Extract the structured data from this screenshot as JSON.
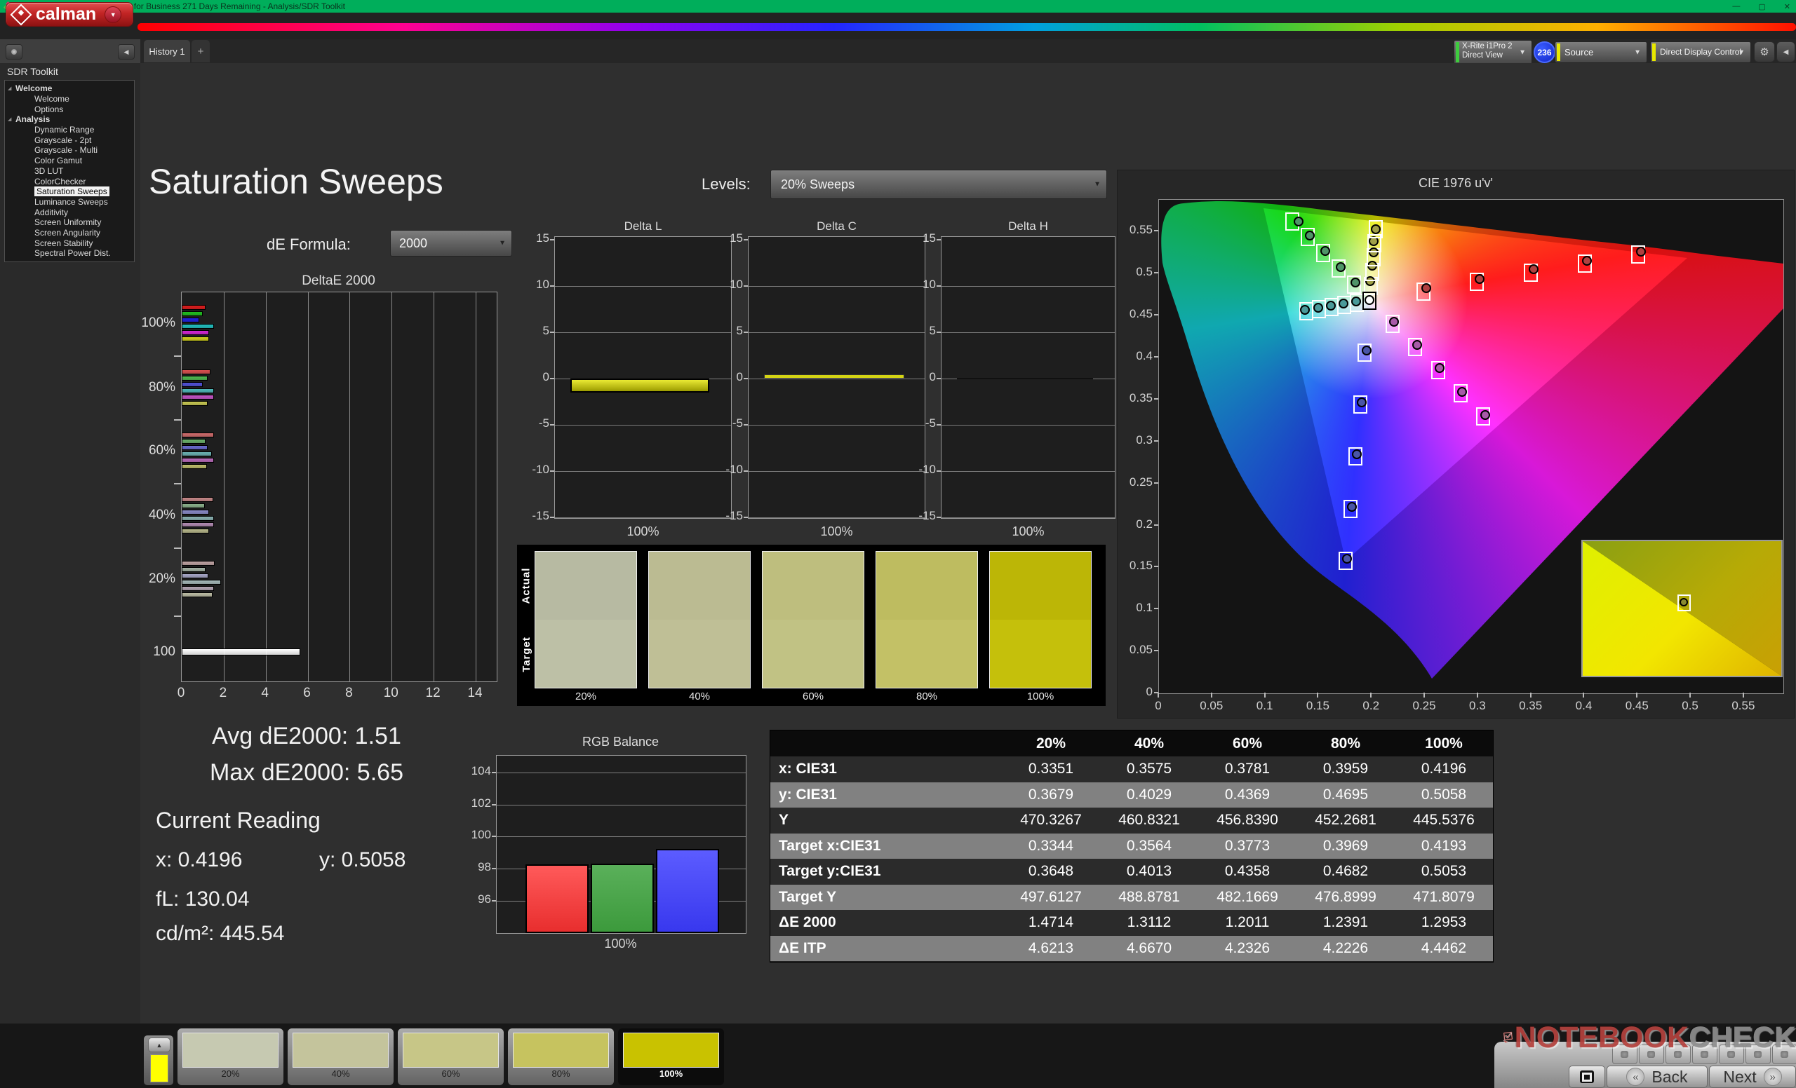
{
  "window": {
    "title": "Calman 2025 Calman Ultimate for Business 271 Days Remaining  - Analysis/SDR Toolkit",
    "controls": [
      "—",
      "▢",
      "✕"
    ]
  },
  "brand": {
    "logo_text": "calman"
  },
  "tabs": {
    "history": "History 1",
    "add": "+"
  },
  "toolbar": {
    "meter": {
      "line1": "X-Rite i1Pro 2",
      "line2": "Direct View",
      "badge": "236",
      "stripe_color": "#3ecb3e"
    },
    "source": {
      "label": "Source",
      "stripe_color": "#e8e800"
    },
    "display_control": {
      "label": "Direct Display Control",
      "stripe_color": "#e8e800"
    }
  },
  "sidebar": {
    "title": "SDR Toolkit",
    "tree": [
      {
        "label": "Welcome",
        "level": 0,
        "bold": true,
        "expander": true
      },
      {
        "label": "Welcome",
        "level": 1
      },
      {
        "label": "Options",
        "level": 1
      },
      {
        "label": "Analysis",
        "level": 0,
        "bold": true,
        "expander": true
      },
      {
        "label": "Dynamic Range",
        "level": 1
      },
      {
        "label": "Grayscale - 2pt",
        "level": 1
      },
      {
        "label": "Grayscale - Multi",
        "level": 1
      },
      {
        "label": "Color Gamut",
        "level": 1
      },
      {
        "label": "3D LUT",
        "level": 1
      },
      {
        "label": "ColorChecker",
        "level": 1
      },
      {
        "label": "Saturation Sweeps",
        "level": 1,
        "selected": true
      },
      {
        "label": "Luminance Sweeps",
        "level": 1
      },
      {
        "label": "Additivity",
        "level": 1
      },
      {
        "label": "Screen Uniformity",
        "level": 1
      },
      {
        "label": "Screen Angularity",
        "level": 1
      },
      {
        "label": "Screen Stability",
        "level": 1
      },
      {
        "label": "Spectral Power Dist.",
        "level": 1
      }
    ]
  },
  "page": {
    "title": "Saturation Sweeps",
    "de_formula_label": "dE Formula:",
    "de_formula_value": "2000",
    "levels_label": "Levels:",
    "levels_value": "20% Sweeps"
  },
  "stats": {
    "avg": "Avg dE2000: 1.51",
    "max": "Max dE2000: 5.65",
    "current_title": "Current Reading",
    "x": "x: 0.4196",
    "y": "y: 0.5058",
    "fl": "fL: 130.04",
    "cdm2": "cd/m²: 445.54"
  },
  "chart_data": [
    {
      "id": "deltae2000",
      "type": "bar",
      "orientation": "horizontal",
      "title": "DeltaE 2000",
      "xlim": [
        0,
        15
      ],
      "x_ticks": [
        "0",
        "2",
        "4",
        "6",
        "8",
        "10",
        "12",
        "14"
      ],
      "series_names": [
        "red",
        "green",
        "blue",
        "cyan",
        "magenta",
        "yellow"
      ],
      "groups": [
        {
          "label": "100%",
          "values": [
            1.13,
            1.01,
            0.84,
            1.52,
            1.3,
            1.3
          ],
          "colors": [
            "#dd1c1c",
            "#1fbf1f",
            "#2020e0",
            "#20c0c0",
            "#d424d4",
            "#d0d01c"
          ]
        },
        {
          "label": "80%",
          "values": [
            1.37,
            1.22,
            0.99,
            1.52,
            1.55,
            1.24
          ],
          "colors": [
            "#d94f4f",
            "#4fba4f",
            "#5050d8",
            "#4fbaba",
            "#c653c6",
            "#c9c951"
          ]
        },
        {
          "label": "60%",
          "values": [
            1.54,
            1.13,
            1.22,
            1.44,
            1.55,
            1.2
          ],
          "colors": [
            "#cf6b6b",
            "#6bb26b",
            "#6b6bd0",
            "#6bb2b2",
            "#bb6bbb",
            "#bfbf6b"
          ]
        },
        {
          "label": "40%",
          "values": [
            1.49,
            1.1,
            1.3,
            1.54,
            1.55,
            1.31
          ],
          "colors": [
            "#c68888",
            "#8ab08a",
            "#8a8ac8",
            "#8ab2b2",
            "#b28ab2",
            "#b8b88a"
          ]
        },
        {
          "label": "20%",
          "values": [
            1.58,
            1.15,
            1.26,
            1.86,
            1.52,
            1.47
          ],
          "colors": [
            "#c0a4a4",
            "#a6b4a6",
            "#a6a6c6",
            "#a6baba",
            "#b4a6b4",
            "#bcbca4"
          ]
        },
        {
          "label": "100",
          "values": [
            5.65
          ],
          "colors": [
            "#ffffff"
          ]
        }
      ]
    },
    {
      "id": "delta_l",
      "type": "bar",
      "title": "Delta L",
      "ylim": [
        -15,
        15
      ],
      "y_ticks": [
        "15",
        "10",
        "5",
        "0",
        "-5",
        "-10",
        "-15"
      ],
      "xlabel": "100%",
      "value": -1.5,
      "color": "#d4d414"
    },
    {
      "id": "delta_c",
      "type": "bar",
      "title": "Delta C",
      "ylim": [
        -15,
        15
      ],
      "y_ticks": [
        "15",
        "10",
        "5",
        "0",
        "-5",
        "-10",
        "-15"
      ],
      "xlabel": "100%",
      "value": 0.3,
      "color": "#d4d414"
    },
    {
      "id": "delta_h",
      "type": "bar",
      "title": "Delta H",
      "ylim": [
        -15,
        15
      ],
      "y_ticks": [
        "15",
        "10",
        "5",
        "0",
        "-5",
        "-10",
        "-15"
      ],
      "xlabel": "100%",
      "value": 0.0,
      "color": "#d4d414"
    },
    {
      "id": "rgb_balance",
      "type": "bar",
      "title": "RGB Balance",
      "ylim": [
        94,
        105
      ],
      "y_ticks": [
        "104",
        "102",
        "100",
        "98",
        "96"
      ],
      "xlabel": "100%",
      "series": [
        {
          "name": "red",
          "value": 98.3,
          "color_top": "#ff5a5a",
          "color_bottom": "#e82e2e"
        },
        {
          "name": "green",
          "value": 98.35,
          "color_top": "#5ab05a",
          "color_bottom": "#3c9a3c"
        },
        {
          "name": "blue",
          "value": 99.25,
          "color_top": "#5c5cff",
          "color_bottom": "#3838ee"
        }
      ]
    },
    {
      "id": "cie1976",
      "type": "scatter",
      "title": "CIE 1976 u'v'",
      "xlim": [
        0,
        0.587
      ],
      "ylim": [
        0,
        0.588
      ],
      "x_ticks": [
        "0",
        "0.05",
        "0.1",
        "0.15",
        "0.2",
        "0.25",
        "0.3",
        "0.35",
        "0.4",
        "0.45",
        "0.5",
        "0.55"
      ],
      "y_ticks": [
        "0.55",
        "0.5",
        "0.45",
        "0.4",
        "0.35",
        "0.3",
        "0.25",
        "0.2",
        "0.15",
        "0.1",
        "0.05",
        "0"
      ],
      "white_point": {
        "target": [
          0.198,
          0.468
        ],
        "measured": [
          0.1978,
          0.4683
        ]
      },
      "sweeps": [
        {
          "name": "red",
          "marker_color": "#b04040",
          "points": [
            {
              "t": [
                0.2485,
                0.479
              ],
              "m": [
                0.251,
                0.4825
              ]
            },
            {
              "t": [
                0.2991,
                0.49
              ],
              "m": [
                0.3015,
                0.4935
              ]
            },
            {
              "t": [
                0.3496,
                0.501
              ],
              "m": [
                0.352,
                0.505
              ]
            },
            {
              "t": [
                0.4002,
                0.512
              ],
              "m": [
                0.4025,
                0.5155
              ]
            },
            {
              "t": [
                0.4507,
                0.5229
              ],
              "m": [
                0.453,
                0.5265
              ]
            }
          ]
        },
        {
          "name": "green",
          "marker_color": "#4f9468",
          "points": [
            {
              "t": [
                0.1834,
                0.4869
              ],
              "m": [
                0.185,
                0.4895
              ]
            },
            {
              "t": [
                0.1688,
                0.5058
              ],
              "m": [
                0.171,
                0.508
              ]
            },
            {
              "t": [
                0.1542,
                0.5247
              ],
              "m": [
                0.1565,
                0.527
              ]
            },
            {
              "t": [
                0.1396,
                0.5436
              ],
              "m": [
                0.142,
                0.5455
              ]
            },
            {
              "t": [
                0.125,
                0.5625
              ],
              "m": [
                0.131,
                0.562
              ]
            }
          ]
        },
        {
          "name": "blue",
          "marker_color": "#4a55a8",
          "points": [
            {
              "t": [
                0.1935,
                0.406
              ],
              "m": [
                0.195,
                0.4085
              ]
            },
            {
              "t": [
                0.189,
                0.344
              ],
              "m": [
                0.1905,
                0.3465
              ]
            },
            {
              "t": [
                0.1845,
                0.282
              ],
              "m": [
                0.1858,
                0.2845
              ]
            },
            {
              "t": [
                0.18,
                0.22
              ],
              "m": [
                0.1812,
                0.2225
              ]
            },
            {
              "t": [
                0.1754,
                0.1579
              ],
              "m": [
                0.1766,
                0.1604
              ]
            }
          ]
        },
        {
          "name": "cyan",
          "marker_color": "#4a9a9a",
          "points": [
            {
              "t": [
                0.1861,
                0.4655
              ],
              "m": [
                0.1852,
                0.4668
              ]
            },
            {
              "t": [
                0.1742,
                0.463
              ],
              "m": [
                0.1733,
                0.4645
              ]
            },
            {
              "t": [
                0.1622,
                0.4605
              ],
              "m": [
                0.1613,
                0.462
              ]
            },
            {
              "t": [
                0.1503,
                0.458
              ],
              "m": [
                0.1494,
                0.4596
              ]
            },
            {
              "t": [
                0.1383,
                0.4554
              ],
              "m": [
                0.1374,
                0.457
              ]
            }
          ]
        },
        {
          "name": "magenta",
          "marker_color": "#a85aa8",
          "points": [
            {
              "t": [
                0.2194,
                0.4404
              ],
              "m": [
                0.221,
                0.4425
              ]
            },
            {
              "t": [
                0.2408,
                0.4127
              ],
              "m": [
                0.2424,
                0.4148
              ]
            },
            {
              "t": [
                0.2622,
                0.3851
              ],
              "m": [
                0.2638,
                0.3872
              ]
            },
            {
              "t": [
                0.2836,
                0.3574
              ],
              "m": [
                0.2852,
                0.3595
              ]
            },
            {
              "t": [
                0.305,
                0.3298
              ],
              "m": [
                0.3066,
                0.3319
              ]
            }
          ]
        },
        {
          "name": "yellow",
          "marker_color": "#a0a048",
          "points": [
            {
              "t": [
                0.199,
                0.4852
              ],
              "m": [
                0.1987,
                0.4909
              ]
            },
            {
              "t": [
                0.2002,
                0.5021
              ],
              "m": [
                0.2008,
                0.5093
              ]
            },
            {
              "t": [
                0.2015,
                0.5191
              ],
              "m": [
                0.202,
                0.5252
              ]
            },
            {
              "t": [
                0.2027,
                0.536
              ],
              "m": [
                0.2019,
                0.5388
              ]
            },
            {
              "t": [
                0.2039,
                0.5529
              ],
              "m": [
                0.2039,
                0.5531
              ]
            }
          ]
        }
      ],
      "inset_marker": {
        "u_frac": 0.51,
        "v_frac": 0.455
      }
    },
    {
      "id": "saturation_swatches",
      "type": "swatch-compare",
      "row_labels": [
        "Actual",
        "Target"
      ],
      "levels": [
        "20%",
        "40%",
        "60%",
        "80%",
        "100%"
      ],
      "actual_colors": [
        "#b7baa2",
        "#bbbb92",
        "#bebe7e",
        "#bebc60",
        "#bcb606"
      ],
      "target_colors": [
        "#bdc0a6",
        "#bfbf96",
        "#c1c284",
        "#c3c166",
        "#c5c00b"
      ]
    },
    {
      "id": "results",
      "type": "table",
      "columns": [
        "",
        "20%",
        "40%",
        "60%",
        "80%",
        "100%"
      ],
      "rows": [
        {
          "label": "x: CIE31",
          "values": [
            "0.3351",
            "0.3575",
            "0.3781",
            "0.3959",
            "0.4196"
          ]
        },
        {
          "label": "y: CIE31",
          "values": [
            "0.3679",
            "0.4029",
            "0.4369",
            "0.4695",
            "0.5058"
          ]
        },
        {
          "label": "Y",
          "values": [
            "470.3267",
            "460.8321",
            "456.8390",
            "452.2681",
            "445.5376"
          ]
        },
        {
          "label": "Target x:CIE31",
          "values": [
            "0.3344",
            "0.3564",
            "0.3773",
            "0.3969",
            "0.4193"
          ]
        },
        {
          "label": "Target y:CIE31",
          "values": [
            "0.3648",
            "0.4013",
            "0.4358",
            "0.4682",
            "0.5053"
          ]
        },
        {
          "label": "Target Y",
          "values": [
            "497.6127",
            "488.8781",
            "482.1669",
            "476.8999",
            "471.8079"
          ]
        },
        {
          "label": "ΔE 2000",
          "values": [
            "1.4714",
            "1.3112",
            "1.2011",
            "1.2391",
            "1.2953"
          ]
        },
        {
          "label": "ΔE ITP",
          "values": [
            "4.6213",
            "4.6670",
            "4.2326",
            "4.2226",
            "4.4462"
          ]
        }
      ]
    }
  ],
  "footer": {
    "meter_swatch_color": "#ffff00",
    "thumbs": [
      {
        "label": "20%",
        "color": "#c6c9b1"
      },
      {
        "label": "40%",
        "color": "#c4c49c"
      },
      {
        "label": "60%",
        "color": "#c7c687"
      },
      {
        "label": "80%",
        "color": "#c6c35f"
      },
      {
        "label": "100%",
        "color": "#c9c200",
        "selected": true
      }
    ],
    "back": "Back",
    "next": "Next"
  },
  "watermark": {
    "red": "NOTEBOOK",
    "gray": "CHECK"
  }
}
